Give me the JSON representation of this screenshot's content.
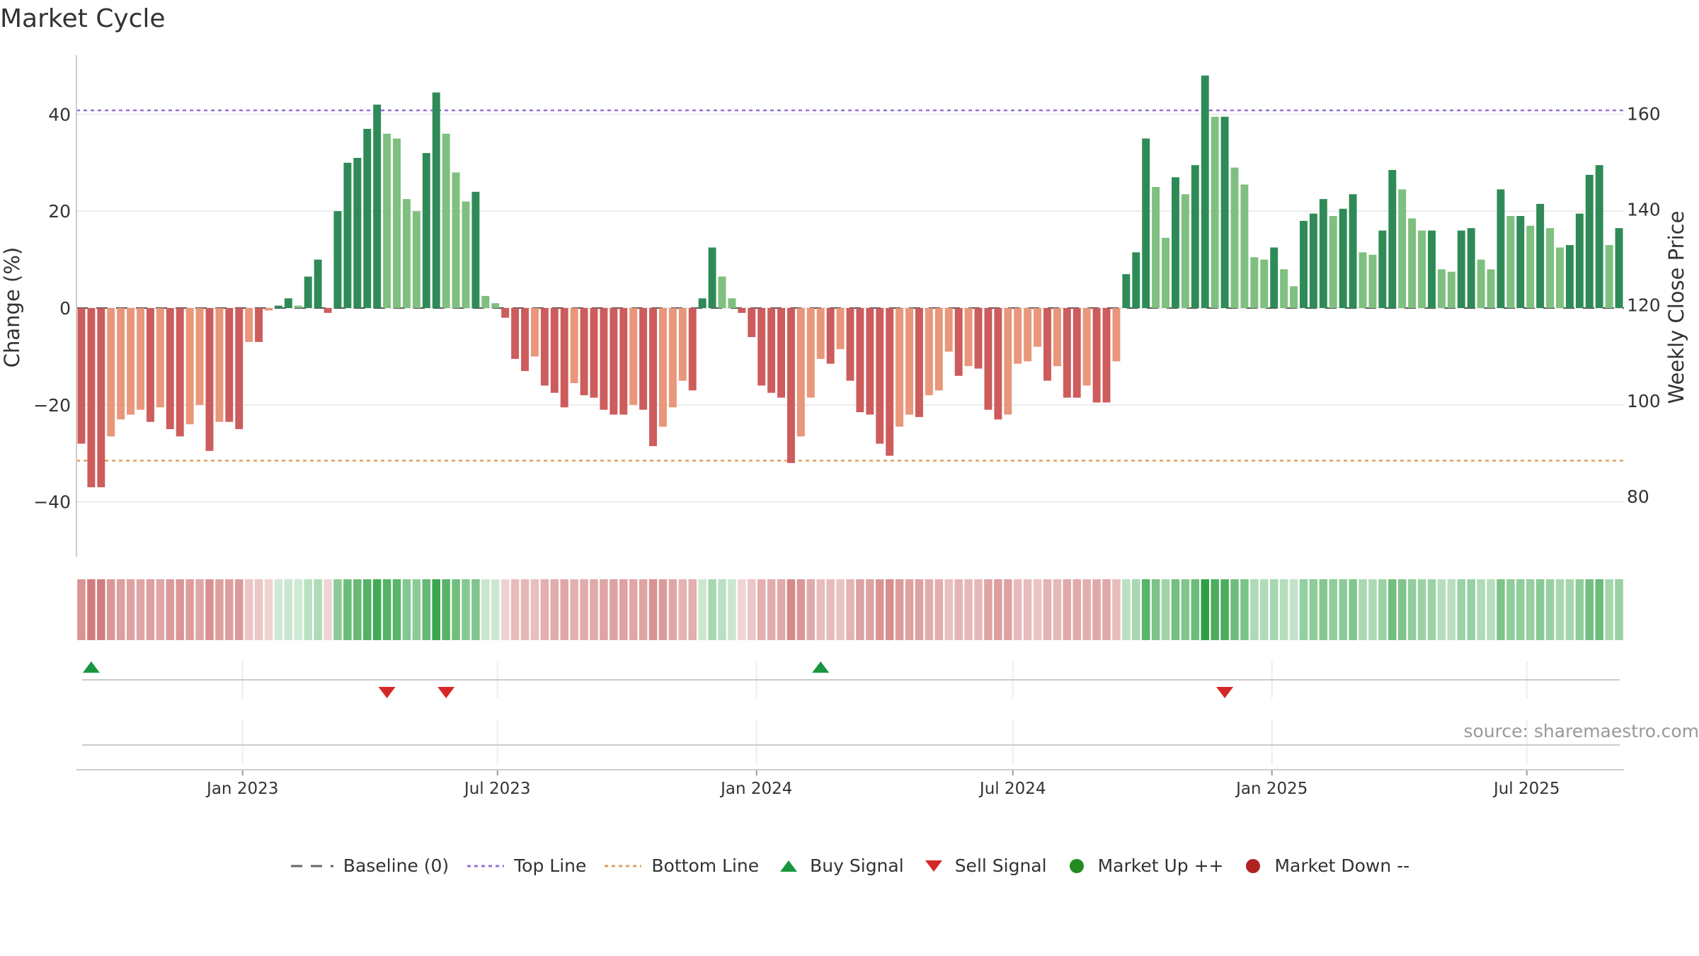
{
  "title": "Market Cycle",
  "source": "source: sharemaestro.com",
  "legend": [
    {
      "label": "Baseline (0)",
      "icon": "dashed-gray"
    },
    {
      "label": "Top Line",
      "icon": "dotted-purple"
    },
    {
      "label": "Bottom Line",
      "icon": "dotted-orange"
    },
    {
      "label": "Buy Signal",
      "icon": "triangle-up-green"
    },
    {
      "label": "Sell Signal",
      "icon": "triangle-down-red"
    },
    {
      "label": "Market Up ++",
      "icon": "dot-green"
    },
    {
      "label": "Market Down --",
      "icon": "dot-red"
    }
  ],
  "chart_data": {
    "type": "bar",
    "x_start": "2022-09-05",
    "x_step_days": 7,
    "ylabel": "Change (%)",
    "ylim": [
      -51,
      51
    ],
    "yticks": [
      40,
      20,
      0,
      -20,
      -40
    ],
    "ytick_labels": [
      "40",
      "20",
      "0",
      "−20",
      "−40"
    ],
    "y2label": "Weekly Close Price",
    "y2lim": [
      67.4,
      172.2
    ],
    "y2ticks": [
      160,
      140,
      120,
      100,
      80
    ],
    "xticks": [
      {
        "date": "2023-01-01",
        "label": "Jan 2023"
      },
      {
        "date": "2023-07-01",
        "label": "Jul 2023"
      },
      {
        "date": "2024-01-01",
        "label": "Jan 2024"
      },
      {
        "date": "2024-07-01",
        "label": "Jul 2024"
      },
      {
        "date": "2025-01-01",
        "label": "Jan 2025"
      },
      {
        "date": "2025-07-01",
        "label": "Jul 2025"
      }
    ],
    "top_line": 40.8,
    "bottom_line": -31.5,
    "values": [
      -28,
      -37,
      -37,
      -26.5,
      -23,
      -22,
      -21,
      -23.5,
      -20.5,
      -25,
      -26.5,
      -24,
      -20,
      -29.5,
      -23.5,
      -23.5,
      -25,
      -7,
      -7,
      -0.5,
      0.5,
      2,
      0.5,
      6.5,
      10,
      -1,
      20,
      30,
      31,
      37,
      42,
      36,
      35,
      22.5,
      20,
      32,
      44.5,
      36,
      28,
      22,
      24,
      2.5,
      1,
      -2,
      -10.5,
      -13,
      -10,
      -16,
      -17.5,
      -20.5,
      -15.5,
      -18,
      -18.5,
      -21,
      -22,
      -22,
      -20,
      -21,
      -28.5,
      -24.5,
      -20.5,
      -15,
      -17,
      2,
      12.5,
      6.5,
      2,
      -1,
      -6,
      -16,
      -17.5,
      -18.5,
      -32,
      -26.5,
      -18.5,
      -10.5,
      -11.5,
      -8.5,
      -15,
      -21.5,
      -22,
      -28,
      -30.5,
      -24.5,
      -22,
      -22.5,
      -18,
      -17,
      -9,
      -14,
      -12,
      -12.5,
      -21,
      -23,
      -22,
      -11.5,
      -11,
      -8,
      -15,
      -12,
      -18.5,
      -18.5,
      -16,
      -19.5,
      -19.5,
      -11,
      7,
      11.5,
      35,
      25,
      14.5,
      27,
      23.5,
      29.5,
      48,
      39.5,
      39.5,
      29,
      25.5,
      10.5,
      10,
      12.5,
      8,
      4.5,
      18,
      19.5,
      22.5,
      19,
      20.5,
      23.5,
      11.5,
      11,
      16,
      28.5,
      24.5,
      18.5,
      16,
      16,
      8,
      7.5,
      16,
      16.5,
      10,
      8,
      24.5,
      19,
      19,
      17,
      21.5,
      16.5,
      12.5,
      13,
      19.5,
      27.5,
      29.5,
      13,
      16.5
    ],
    "buy_signals": [
      "2022-09-12",
      "2024-02-12"
    ],
    "sell_signals": [
      "2023-04-10",
      "2023-05-22",
      "2024-11-25"
    ],
    "colors": {
      "strong_up": "#2e8b57",
      "weak_up": "#7fbf7f",
      "strong_down": "#cd5c5c",
      "weak_down": "#e9967a",
      "top_line": "#9370db",
      "bottom_line": "#e0a060",
      "buy": "#1a9641",
      "sell": "#d62728"
    }
  }
}
